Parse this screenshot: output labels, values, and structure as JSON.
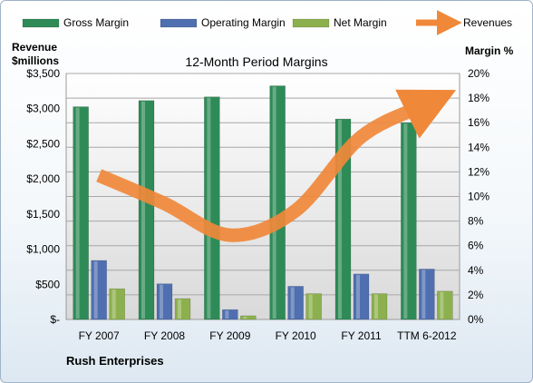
{
  "chart_data": {
    "type": "bar",
    "title": "12-Month Period Margins",
    "categories": [
      "FY 2007",
      "FY 2008",
      "FY 2009",
      "FY 2010",
      "FY 2011",
      "TTM 6-2012"
    ],
    "series": [
      {
        "name": "Gross Margin",
        "axis": "right",
        "values": [
          17.3,
          17.8,
          18.1,
          19.0,
          16.3,
          16.0
        ],
        "color": "#2e8b57"
      },
      {
        "name": "Operating Margin",
        "axis": "right",
        "values": [
          4.8,
          2.9,
          0.8,
          2.7,
          3.7,
          4.1
        ],
        "color": "#4f6fb0"
      },
      {
        "name": "Net Margin",
        "axis": "right",
        "values": [
          2.5,
          1.7,
          0.3,
          2.1,
          2.1,
          2.3
        ],
        "color": "#8db04e"
      },
      {
        "name": "Revenues",
        "axis": "left",
        "type": "line",
        "values": [
          2050,
          1650,
          1200,
          1550,
          2600,
          3060
        ],
        "color": "#f0883a"
      }
    ],
    "left_axis": {
      "label_line1": "Revenue",
      "label_line2": "$millions",
      "ylim": [
        0,
        3500
      ],
      "ticks": [
        "$-",
        "$500",
        "$1,000",
        "$1,500",
        "$2,000",
        "$2,500",
        "$3,000",
        "$3,500"
      ]
    },
    "right_axis": {
      "label": "Margin %",
      "ylim": [
        0,
        20
      ],
      "ticks": [
        "0%",
        "2%",
        "4%",
        "6%",
        "8%",
        "10%",
        "12%",
        "14%",
        "16%",
        "18%",
        "20%"
      ]
    },
    "legend_position": "top",
    "grid": true,
    "footer": "Rush Enterprises"
  }
}
